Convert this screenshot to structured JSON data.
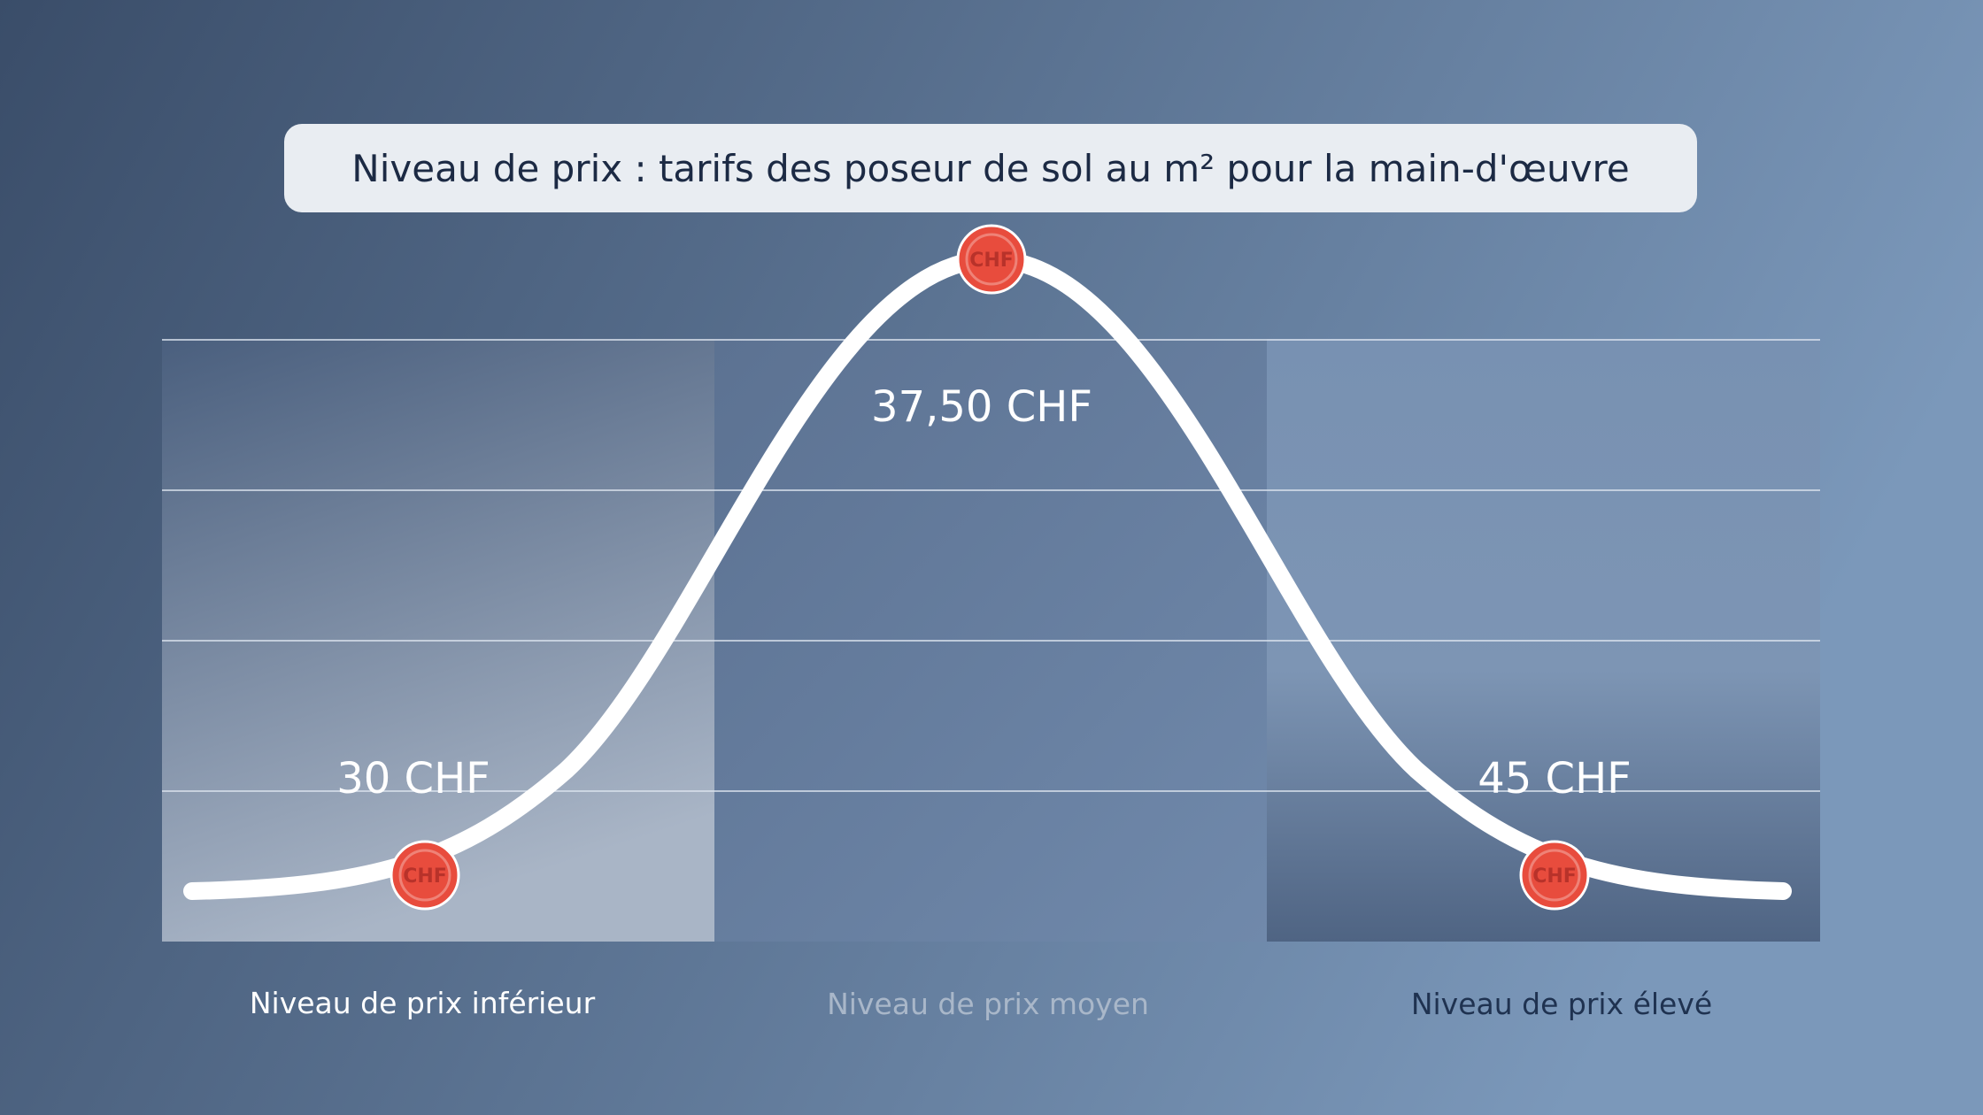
{
  "title": "Niveau de prix : tarifs des poseur de sol au m² pour la main-d'œuvre",
  "marker_label": "CHF",
  "levels": [
    {
      "label": "Niveau de prix inférieur",
      "price": "30 CHF"
    },
    {
      "label": "Niveau de prix moyen",
      "price": "37,50 CHF"
    },
    {
      "label": "Niveau de prix élevé",
      "price": "45 CHF"
    }
  ]
}
